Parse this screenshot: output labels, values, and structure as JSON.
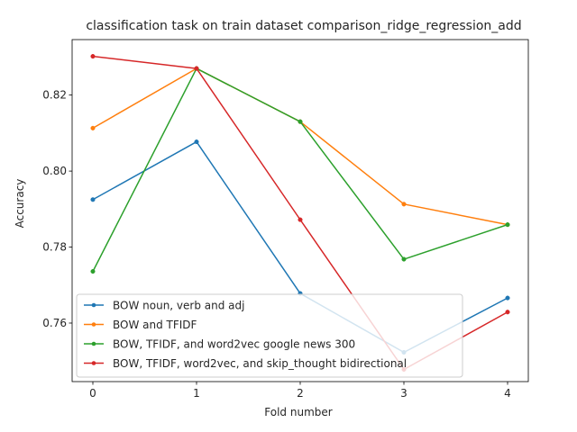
{
  "chart_data": {
    "type": "line",
    "title": "classification task on train dataset comparison_ridge_regression_add",
    "xlabel": "Fold number",
    "ylabel": "Accuracy",
    "x": [
      0,
      1,
      2,
      3,
      4
    ],
    "xticks": [
      "0",
      "1",
      "2",
      "3",
      "4"
    ],
    "yticks": [
      "0.76",
      "0.78",
      "0.80",
      "0.82"
    ],
    "xlim": [
      -0.2,
      4.2
    ],
    "ylim": [
      0.7446,
      0.8346
    ],
    "grid": false,
    "legend_position": "lower left",
    "series": [
      {
        "name": "BOW noun, verb and adj",
        "color": "#1f77b4",
        "marker": "circle",
        "values": [
          0.7925,
          0.8077,
          0.7678,
          0.7523,
          0.7666
        ]
      },
      {
        "name": "BOW and TFIDF",
        "color": "#ff7f0e",
        "marker": "circle",
        "values": [
          0.8113,
          0.827,
          0.813,
          0.7913,
          0.7859
        ]
      },
      {
        "name": "BOW, TFIDF, and word2vec google news 300",
        "color": "#2ca02c",
        "marker": "circle",
        "values": [
          0.7736,
          0.827,
          0.813,
          0.7768,
          0.7859
        ]
      },
      {
        "name": "BOW, TFIDF, word2vec, and skip_thought bidirectional",
        "color": "#d62728",
        "marker": "circle",
        "values": [
          0.8302,
          0.827,
          0.7872,
          0.7478,
          0.7629
        ]
      }
    ]
  }
}
